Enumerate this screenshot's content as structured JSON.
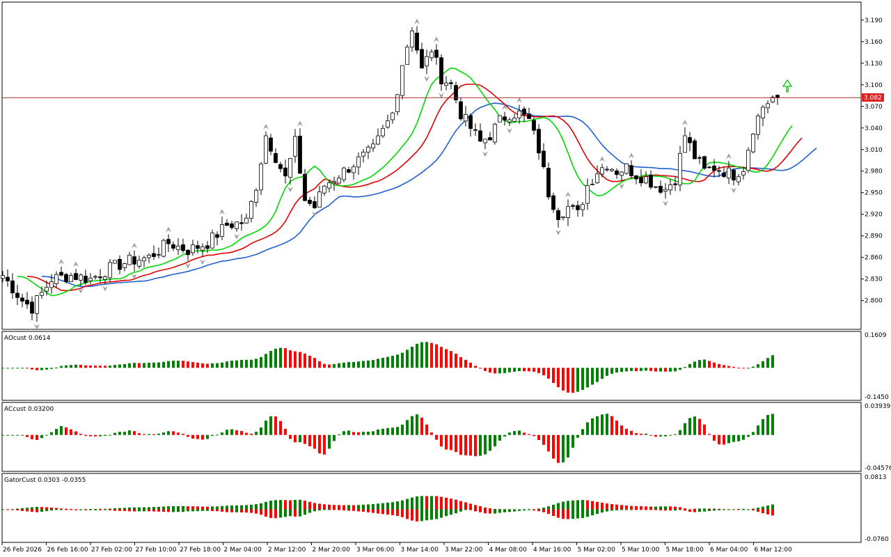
{
  "colors": {
    "bull": "#008000",
    "bear": "#ff0000",
    "candle": "#000000",
    "jaw": "#1f5fcf",
    "teeth": "#e00000",
    "lips": "#00d800",
    "price_line": "#b03030",
    "price_tag_bg": "#e02020",
    "fractal": "#a0a0a0",
    "signal_arrow": "#00c000"
  },
  "icons": {
    "fractal_up": "arrow-up-glyph",
    "fractal_down": "arrow-down-glyph",
    "signal": "hollow-up-arrow"
  },
  "chart_data": [
    {
      "type": "candlestick",
      "title": "",
      "last_price": "3.082",
      "y_ticks": [
        "3.190",
        "3.160",
        "3.130",
        "3.100",
        "3.070",
        "3.040",
        "3.010",
        "2.980",
        "2.950",
        "2.920",
        "2.890",
        "2.860",
        "2.830",
        "2.800"
      ],
      "ylim": [
        2.76,
        3.215
      ],
      "x_ticks": [
        "26 Feb 2026",
        "26 Feb 16:00",
        "27 Feb 02:00",
        "27 Feb 10:00",
        "27 Feb 18:00",
        "2 Mar 04:00",
        "2 Mar 12:00",
        "2 Mar 20:00",
        "3 Mar 06:00",
        "3 Mar 14:00",
        "3 Mar 22:00",
        "4 Mar 08:00",
        "4 Mar 16:00",
        "5 Mar 02:00",
        "5 Mar 10:00",
        "5 Mar 18:00",
        "6 Mar 04:00",
        "6 Mar 12:00"
      ],
      "anchors": [
        [
          0,
          2.835
        ],
        [
          4,
          2.8
        ],
        [
          6,
          2.79
        ],
        [
          10,
          2.83
        ],
        [
          14,
          2.835
        ],
        [
          18,
          2.83
        ],
        [
          22,
          2.845
        ],
        [
          26,
          2.855
        ],
        [
          30,
          2.86
        ],
        [
          34,
          2.88
        ],
        [
          38,
          2.87
        ],
        [
          42,
          2.88
        ],
        [
          46,
          2.905
        ],
        [
          50,
          2.91
        ],
        [
          52,
          2.96
        ],
        [
          54,
          3.03
        ],
        [
          56,
          3.0
        ],
        [
          58,
          2.97
        ],
        [
          60,
          3.02
        ],
        [
          62,
          2.94
        ],
        [
          64,
          2.93
        ],
        [
          66,
          2.96
        ],
        [
          68,
          2.97
        ],
        [
          72,
          2.99
        ],
        [
          76,
          3.01
        ],
        [
          80,
          3.06
        ],
        [
          82,
          3.13
        ],
        [
          84,
          3.18
        ],
        [
          86,
          3.12
        ],
        [
          88,
          3.15
        ],
        [
          90,
          3.11
        ],
        [
          92,
          3.1
        ],
        [
          94,
          3.06
        ],
        [
          96,
          3.04
        ],
        [
          98,
          3.02
        ],
        [
          100,
          3.03
        ],
        [
          102,
          3.05
        ],
        [
          104,
          3.06
        ],
        [
          106,
          3.06
        ],
        [
          108,
          3.05
        ],
        [
          110,
          3.01
        ],
        [
          112,
          2.95
        ],
        [
          114,
          2.92
        ],
        [
          116,
          2.93
        ],
        [
          118,
          2.92
        ],
        [
          120,
          2.96
        ],
        [
          122,
          2.98
        ],
        [
          124,
          2.99
        ],
        [
          126,
          2.98
        ],
        [
          128,
          2.985
        ],
        [
          130,
          2.975
        ],
        [
          132,
          2.97
        ],
        [
          134,
          2.96
        ],
        [
          136,
          2.955
        ],
        [
          138,
          2.97
        ],
        [
          140,
          3.03
        ],
        [
          142,
          3.0
        ],
        [
          144,
          2.98
        ],
        [
          146,
          2.985
        ],
        [
          148,
          2.98
        ],
        [
          150,
          2.975
        ],
        [
          152,
          2.985
        ],
        [
          154,
          3.04
        ],
        [
          156,
          3.07
        ],
        [
          158,
          3.082
        ]
      ]
    },
    {
      "type": "bar",
      "title": "AOcust 0.0614",
      "y_ticks": [
        "0.1609",
        "-0.1450"
      ],
      "ylim": [
        -0.145,
        0.1609
      ]
    },
    {
      "type": "bar",
      "title": "ACcust 0.03200",
      "y_ticks": [
        "0.03939",
        "-0.04576"
      ],
      "ylim": [
        -0.04576,
        0.03939
      ]
    },
    {
      "type": "bar",
      "title": "GatorCust 0.0303 -0.0355",
      "y_ticks": [
        "0.0813",
        "-0.0760"
      ],
      "ylim": [
        -0.076,
        0.0813
      ]
    }
  ]
}
